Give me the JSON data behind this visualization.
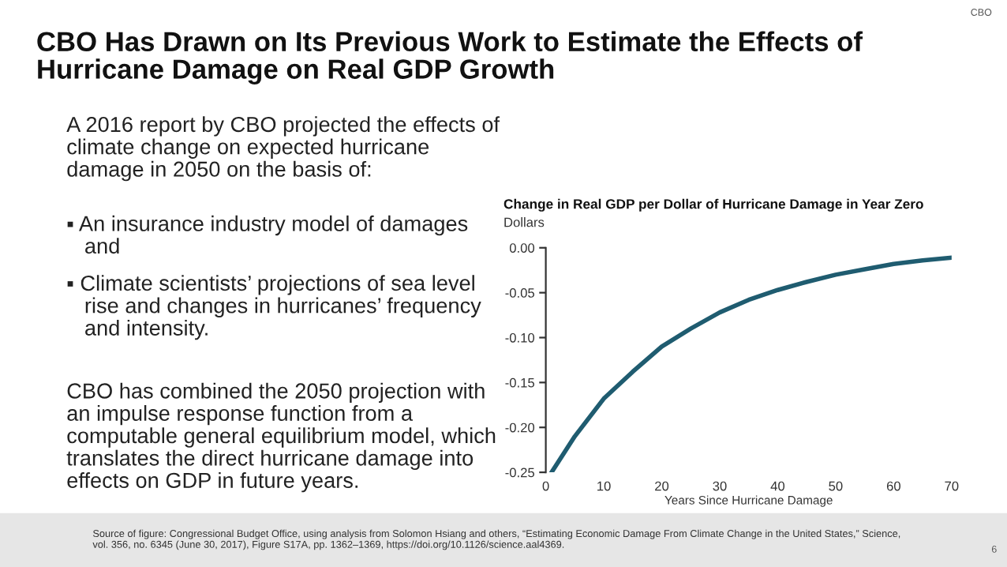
{
  "chart_data": {
    "type": "line",
    "title": "Change in Real GDP per Dollar of Hurricane Damage in Year Zero",
    "subtitle": "Dollars",
    "xlabel": "Years Since Hurricane Damage",
    "x": [
      1,
      5,
      10,
      15,
      20,
      25,
      30,
      35,
      40,
      45,
      50,
      55,
      60,
      65,
      70
    ],
    "series": [
      {
        "color": "#1f5c70",
        "values": [
          -0.25,
          -0.21,
          -0.168,
          -0.138,
          -0.11,
          -0.09,
          -0.072,
          -0.058,
          -0.047,
          -0.038,
          -0.03,
          -0.024,
          -0.018,
          -0.014,
          -0.011
        ]
      }
    ],
    "xlim": [
      0,
      70
    ],
    "xticks": [
      0,
      10,
      20,
      30,
      40,
      50,
      60,
      70
    ],
    "ylim": [
      -0.25,
      0
    ],
    "yticks": [
      {
        "value": -0.25,
        "label": "-0.25"
      },
      {
        "value": -0.2,
        "label": "-0.20"
      },
      {
        "value": -0.15,
        "label": "-0.15"
      },
      {
        "value": -0.1,
        "label": "-0.10"
      },
      {
        "value": -0.05,
        "label": "-0.05"
      },
      {
        "value": 0,
        "label": "0.00"
      }
    ],
    "grid": false,
    "legend": false,
    "marker": "none",
    "line_style": "solid",
    "annotations": [
      "CBO",
      "CBO Has Drawn on Its Previous Work to Estimate the Effects of\nHurricane Damage on Real GDP Growth",
      "A 2016 report by CBO projected the effects of\nclimate change on expected hurricane\ndamage in 2050 on the basis of:",
      "▪ An insurance industry model of damages\n   and",
      "▪ Climate scientists’ projections of sea level\n   rise and changes in hurricanes’ frequency\n   and intensity.",
      "CBO has combined the 2050 projection with\nan impulse response function from a\ncomputable general equilibrium model, which\ntranslates the direct hurricane damage into\neffects on GDP in future years.",
      "Source of figure: Congressional Budget Office, using analysis from Solomon Hsiang and others, “Estimating Economic Damage From Climate Change in the United States,” Science,\nvol. 356, no. 6345 (June 30, 2017), Figure S17A, pp. 1362–1369, https://doi.org/10.1126/science.aal4369.",
      "6"
    ]
  }
}
